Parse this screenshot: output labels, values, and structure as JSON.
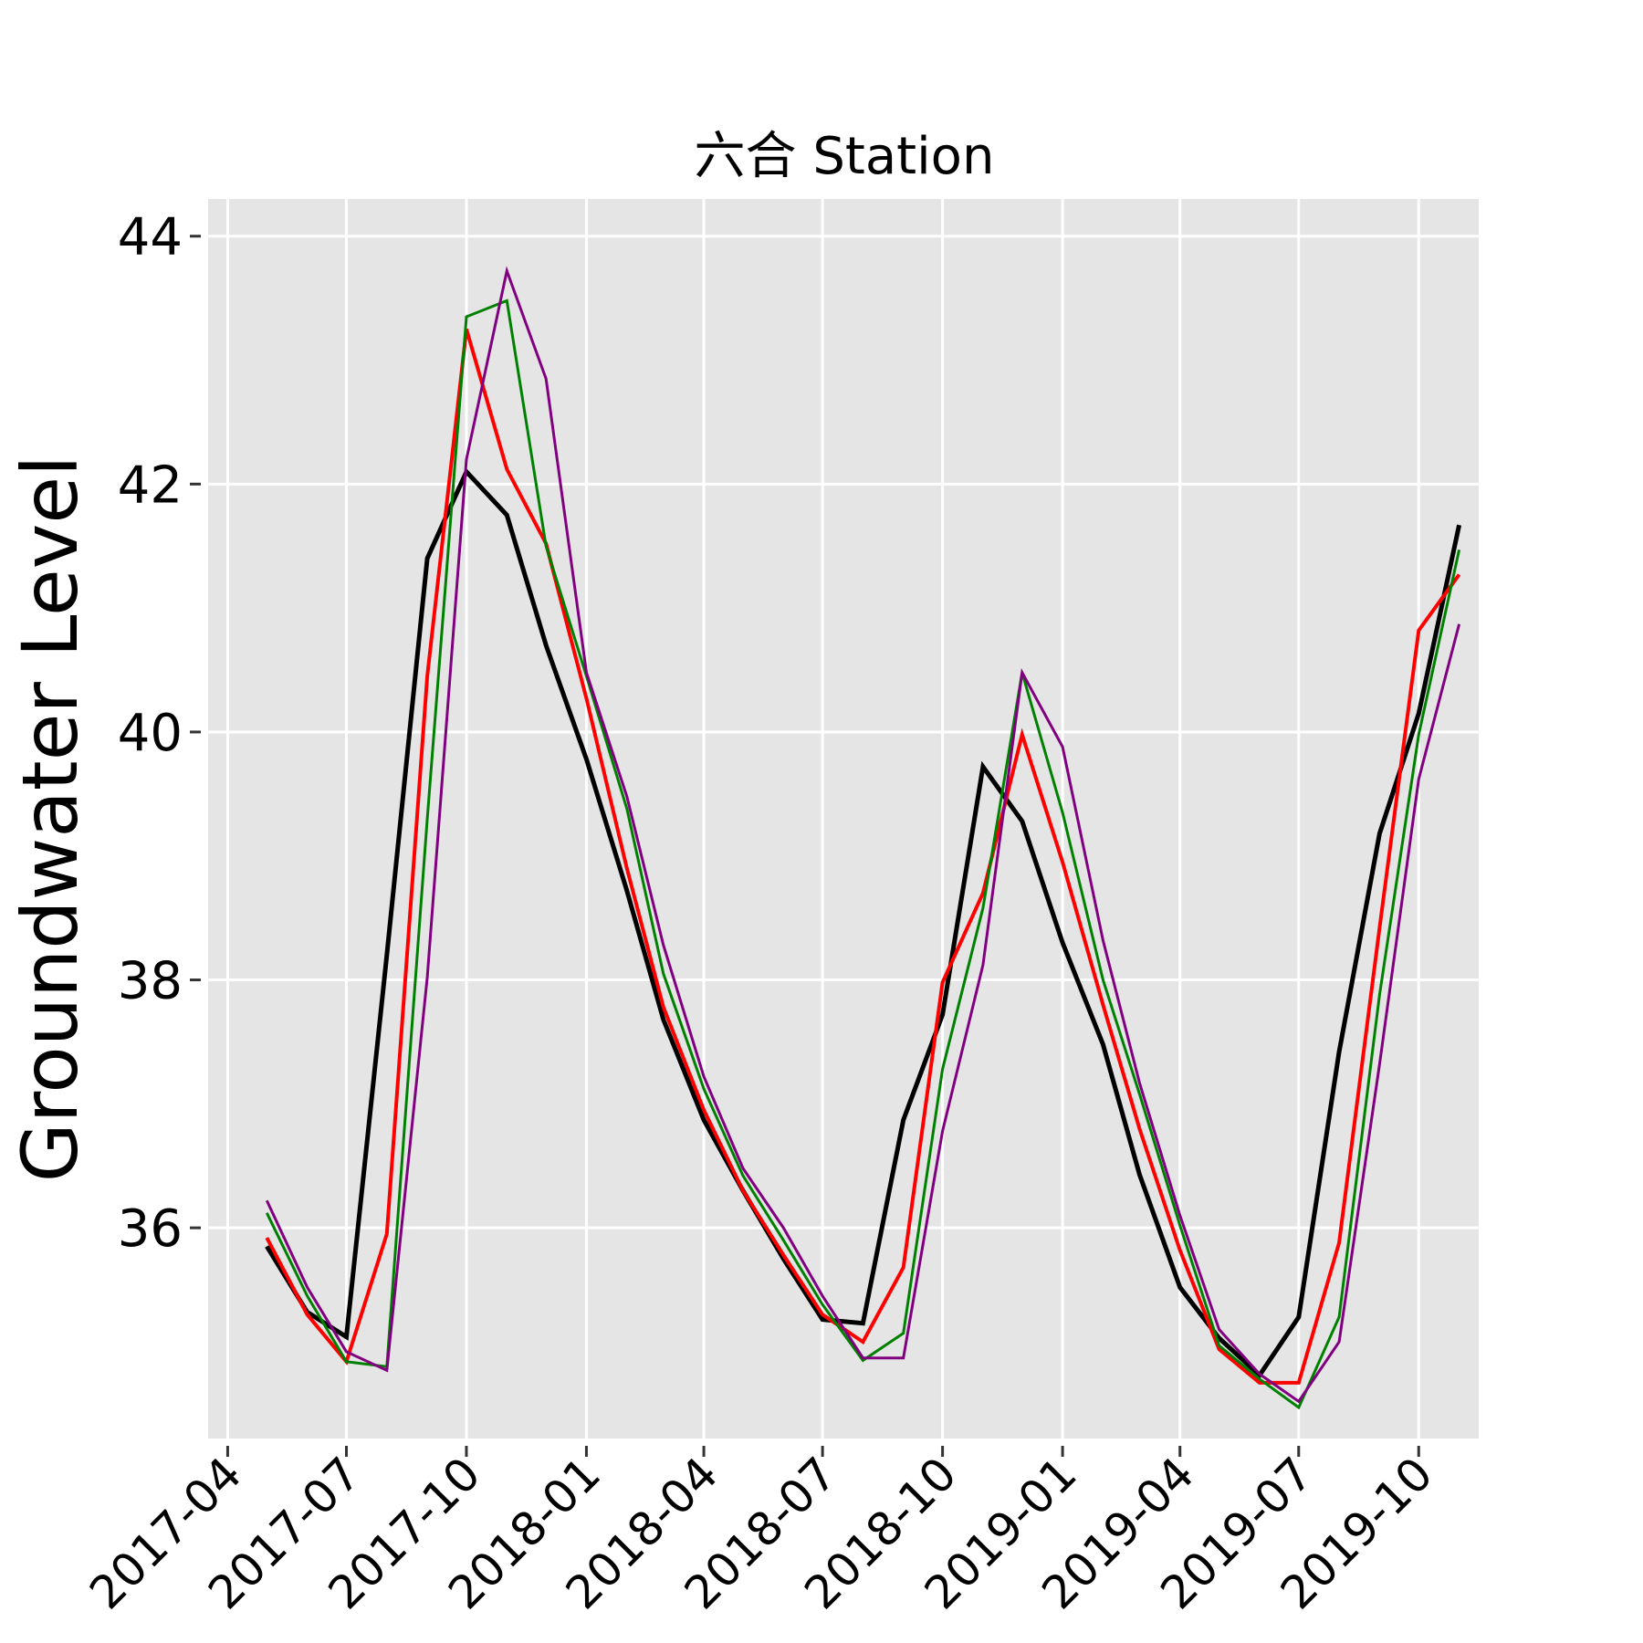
{
  "chart_data": {
    "type": "line",
    "title": "六合 Station",
    "xlabel": "",
    "ylabel": "Groundwater Level",
    "ylim": [
      34.3,
      44.3
    ],
    "xlim": [
      "2017-03-17",
      "2019-11-16"
    ],
    "grid": true,
    "background": "#e5e5e5",
    "x_ticks": [
      "2017-04",
      "2017-07",
      "2017-10",
      "2018-01",
      "2018-04",
      "2018-07",
      "2018-10",
      "2019-01",
      "2019-04",
      "2019-07",
      "2019-10"
    ],
    "y_ticks": [
      36,
      38,
      40,
      42,
      44
    ],
    "x": [
      "2017-05-01",
      "2017-06-01",
      "2017-07-01",
      "2017-08-01",
      "2017-09-01",
      "2017-10-01",
      "2017-11-01",
      "2017-12-01",
      "2018-01-01",
      "2018-02-01",
      "2018-03-01",
      "2018-04-01",
      "2018-05-01",
      "2018-06-01",
      "2018-07-01",
      "2018-08-01",
      "2018-09-01",
      "2018-10-01",
      "2018-11-01",
      "2018-12-01",
      "2019-01-01",
      "2019-02-01",
      "2019-03-01",
      "2019-04-01",
      "2019-05-01",
      "2019-06-01",
      "2019-07-01",
      "2019-08-01",
      "2019-09-01",
      "2019-10-01",
      "2019-11-01"
    ],
    "series": [
      {
        "color": "#000000",
        "width": 5,
        "values": [
          35.85,
          35.32,
          35.12,
          38.2,
          41.4,
          42.1,
          41.75,
          40.7,
          39.78,
          38.72,
          37.68,
          36.87,
          36.3,
          35.75,
          35.26,
          35.23,
          36.87,
          37.72,
          39.72,
          39.28,
          38.3,
          37.48,
          36.43,
          35.52,
          35.11,
          34.81,
          35.28,
          37.42,
          39.18,
          40.15,
          41.67
        ]
      },
      {
        "color": "#ff0000",
        "width": 4,
        "values": [
          35.92,
          35.3,
          34.92,
          35.95,
          40.45,
          43.25,
          42.12,
          41.52,
          40.27,
          38.9,
          37.78,
          36.95,
          36.3,
          35.78,
          35.3,
          35.08,
          35.68,
          37.98,
          38.7,
          39.98,
          38.95,
          37.8,
          36.8,
          35.82,
          35.02,
          34.75,
          34.75,
          35.88,
          38.42,
          40.82,
          41.27
        ]
      },
      {
        "color": "#008000",
        "width": 3,
        "values": [
          36.12,
          35.45,
          34.92,
          34.88,
          39.3,
          43.35,
          43.48,
          41.5,
          40.45,
          39.38,
          38.05,
          37.12,
          36.42,
          35.9,
          35.38,
          34.93,
          35.15,
          37.28,
          38.58,
          40.48,
          39.35,
          38.0,
          37.08,
          36.02,
          35.05,
          34.78,
          34.55,
          35.28,
          37.88,
          39.98,
          41.47
        ]
      },
      {
        "color": "#800080",
        "width": 3,
        "values": [
          36.22,
          35.52,
          35.0,
          34.85,
          38.02,
          42.2,
          43.72,
          42.85,
          40.48,
          39.48,
          38.28,
          37.22,
          36.48,
          36.0,
          35.45,
          34.95,
          34.95,
          36.78,
          38.12,
          40.48,
          39.88,
          38.32,
          37.17,
          36.1,
          35.18,
          34.82,
          34.6,
          35.08,
          37.32,
          39.62,
          40.87
        ]
      }
    ]
  }
}
